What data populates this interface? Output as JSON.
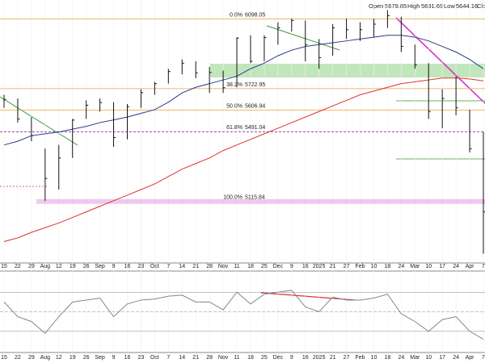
{
  "header": {
    "labels": [
      "Open",
      "High",
      "Low",
      "Close"
    ],
    "open": 5679.85,
    "high": 5691.69,
    "low": 5644.16
  },
  "chart_data": [
    {
      "type": "ohlc",
      "categories": [
        "15",
        "22",
        "29",
        "Aug",
        "12",
        "19",
        "26",
        "Sep",
        "9",
        "16",
        "23",
        "Oct",
        "7",
        "14",
        "21",
        "28",
        "Nov",
        "11",
        "18",
        "25",
        "Dec",
        "9",
        "16",
        "2025",
        "21",
        "27",
        "Feb",
        "10",
        "18",
        "24",
        "Mar",
        "10",
        "17",
        "24",
        "Apr",
        "7"
      ],
      "highs": [
        5690,
        5670,
        5570,
        5400,
        5420,
        5560,
        5660,
        5670,
        5650,
        5640,
        5720,
        5760,
        5830,
        5880,
        5870,
        5840,
        5820,
        6000,
        6010,
        6010,
        6080,
        6100,
        6090,
        5990,
        6070,
        6100,
        6080,
        6100,
        6145,
        6110,
        5960,
        5860,
        5720,
        5790,
        5610,
        5490
      ],
      "lows": [
        5620,
        5540,
        5440,
        5119,
        5180,
        5350,
        5560,
        5600,
        5410,
        5450,
        5620,
        5690,
        5750,
        5800,
        5780,
        5700,
        5700,
        5730,
        5860,
        5870,
        5960,
        6030,
        5870,
        5830,
        5900,
        5990,
        5980,
        6000,
        6050,
        5920,
        5830,
        5560,
        5510,
        5580,
        5380,
        4835
      ],
      "closes": [
        5665,
        5560,
        5470,
        5240,
        5350,
        5554,
        5634,
        5648,
        5460,
        5626,
        5702,
        5750,
        5815,
        5860,
        5808,
        5810,
        5728,
        5995,
        5870,
        5998,
        6050,
        6090,
        5960,
        5890,
        6050,
        6040,
        6040,
        6070,
        6115,
        5950,
        5850,
        5600,
        5670,
        5620,
        5400,
        5060
      ],
      "color": "#111111",
      "series": [
        {
          "color": "#2b3a8c",
          "values": [
            5420,
            5440,
            5470,
            5480,
            5490,
            5505,
            5520,
            5540,
            5555,
            5570,
            5590,
            5610,
            5650,
            5700,
            5730,
            5750,
            5770,
            5790,
            5830,
            5860,
            5900,
            5930,
            5950,
            5960,
            5970,
            5980,
            5990,
            6000,
            6010,
            6010,
            6000,
            5980,
            5950,
            5920,
            5880,
            5830
          ]
        },
        {
          "color": "#d9362b",
          "values": [
            4900,
            4920,
            4950,
            4975,
            5000,
            5030,
            5060,
            5090,
            5120,
            5150,
            5180,
            5210,
            5250,
            5290,
            5320,
            5350,
            5390,
            5420,
            5450,
            5480,
            5510,
            5540,
            5570,
            5600,
            5630,
            5660,
            5690,
            5710,
            5730,
            5750,
            5760,
            5770,
            5780,
            5780,
            5775,
            5765
          ]
        }
      ],
      "fib_levels": [
        {
          "label": "0.0%",
          "value": 6098.05,
          "color": "#e8a33c"
        },
        {
          "label": "38.2%",
          "value": 5722.95,
          "color": "#e8a33c"
        },
        {
          "label": "50.0%",
          "value": 5606.94,
          "color": "#e8a33c"
        },
        {
          "label": "61.8%",
          "value": 5491.04,
          "color": "#9b1f9b"
        },
        {
          "label": "100.0%",
          "value": 5115.84,
          "color": "#d98ad9"
        }
      ],
      "ylim": [
        4785,
        6200
      ]
    },
    {
      "type": "line",
      "categories": [
        "15",
        "22",
        "29",
        "Aug",
        "12",
        "19",
        "26",
        "Sep",
        "9",
        "16",
        "23",
        "Oct",
        "7",
        "14",
        "21",
        "28",
        "Nov",
        "11",
        "18",
        "25",
        "Dec",
        "9",
        "16",
        "2025",
        "21",
        "27",
        "Feb",
        "10",
        "18",
        "24",
        "Mar",
        "10",
        "17",
        "24",
        "Apr",
        "7"
      ],
      "values": [
        60,
        45,
        40,
        28,
        45,
        60,
        62,
        64,
        45,
        58,
        62,
        63,
        66,
        67,
        60,
        60,
        52,
        70,
        58,
        68,
        70,
        72,
        55,
        50,
        65,
        62,
        62,
        64,
        68,
        48,
        40,
        30,
        42,
        45,
        30,
        22
      ],
      "color": "#7a8899",
      "reference_lines": [
        30,
        50,
        70
      ],
      "ylim": [
        10,
        90
      ]
    }
  ]
}
